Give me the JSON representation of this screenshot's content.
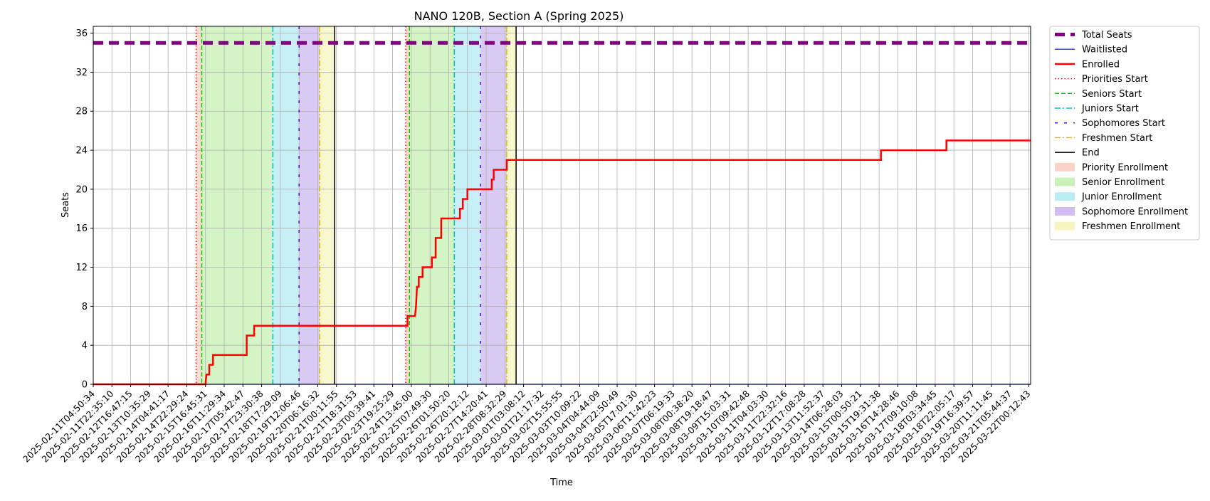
{
  "chart_data": {
    "type": "line",
    "title": "NANO 120B, Section A (Spring 2025)",
    "xlabel": "Time",
    "ylabel": "Seats",
    "ylim": [
      0,
      36.7
    ],
    "yticks": [
      0,
      4,
      8,
      12,
      16,
      20,
      24,
      28,
      32,
      36
    ],
    "grid": true,
    "legend_position": "outside-right",
    "x_tick_labels": [
      "2025-02-11T04:50:34",
      "2025-02-11T22:35:10",
      "2025-02-12T16:47:15",
      "2025-02-13T10:35:29",
      "2025-02-14T04:41:17",
      "2025-02-14T22:29:24",
      "2025-02-15T16:45:31",
      "2025-02-16T11:29:34",
      "2025-02-17T05:42:47",
      "2025-02-17T23:30:38",
      "2025-02-18T17:29:09",
      "2025-02-19T12:06:46",
      "2025-02-20T06:16:32",
      "2025-02-21T00:11:55",
      "2025-02-21T18:31:53",
      "2025-02-23T00:39:41",
      "2025-02-23T19:25:29",
      "2025-02-24T13:45:00",
      "2025-02-25T07:49:30",
      "2025-02-26T01:50:20",
      "2025-02-26T20:12:12",
      "2025-02-27T14:20:41",
      "2025-02-28T08:32:29",
      "2025-03-01T03:08:12",
      "2025-03-01T21:17:32",
      "2025-03-02T15:55:55",
      "2025-03-03T10:09:22",
      "2025-03-04T04:44:09",
      "2025-03-04T22:50:49",
      "2025-03-05T17:01:30",
      "2025-03-06T11:42:23",
      "2025-03-07T06:19:33",
      "2025-03-08T00:38:20",
      "2025-03-08T19:18:47",
      "2025-03-09T15:03:31",
      "2025-03-10T09:42:48",
      "2025-03-11T04:03:30",
      "2025-03-11T22:32:16",
      "2025-03-12T17:08:28",
      "2025-03-13T11:52:37",
      "2025-03-14T06:28:03",
      "2025-03-15T00:50:21",
      "2025-03-15T19:31:38",
      "2025-03-16T14:28:46",
      "2025-03-17T09:10:08",
      "2025-03-18T03:34:45",
      "2025-03-18T22:05:17",
      "2025-03-19T16:39:57",
      "2025-03-20T11:11:45",
      "2025-03-21T05:44:37",
      "2025-03-22T00:12:43"
    ],
    "x_index_range": [
      0,
      50.1
    ],
    "series": [
      {
        "name": "Total Seats",
        "color": "#800080",
        "style": "dashed-thick",
        "points": [
          [
            0,
            35
          ],
          [
            50.1,
            35
          ]
        ]
      },
      {
        "name": "Waitlisted",
        "color": "#0000ff",
        "style": "solid",
        "points": [
          [
            0,
            0
          ],
          [
            50.1,
            0
          ]
        ]
      },
      {
        "name": "Enrolled",
        "color": "#ff0000",
        "style": "solid",
        "points": [
          [
            0,
            0
          ],
          [
            6,
            0
          ],
          [
            6.05,
            1
          ],
          [
            6.2,
            1
          ],
          [
            6.2,
            2
          ],
          [
            6.4,
            2
          ],
          [
            6.4,
            3
          ],
          [
            8.2,
            3
          ],
          [
            8.2,
            5
          ],
          [
            8.6,
            5
          ],
          [
            8.6,
            6
          ],
          [
            16.8,
            6
          ],
          [
            16.8,
            7
          ],
          [
            17.2,
            7
          ],
          [
            17.25,
            8
          ],
          [
            17.3,
            10
          ],
          [
            17.4,
            10
          ],
          [
            17.4,
            11
          ],
          [
            17.6,
            11
          ],
          [
            17.6,
            12
          ],
          [
            18.1,
            12
          ],
          [
            18.1,
            13
          ],
          [
            18.3,
            13
          ],
          [
            18.3,
            15
          ],
          [
            18.6,
            15
          ],
          [
            18.6,
            17
          ],
          [
            19.6,
            17
          ],
          [
            19.6,
            18
          ],
          [
            19.75,
            18
          ],
          [
            19.75,
            19
          ],
          [
            20,
            19
          ],
          [
            20,
            20
          ],
          [
            21.3,
            20
          ],
          [
            21.3,
            21
          ],
          [
            21.4,
            21
          ],
          [
            21.4,
            22
          ],
          [
            22.1,
            22
          ],
          [
            22.1,
            23
          ],
          [
            42.1,
            23
          ],
          [
            42.1,
            24
          ],
          [
            45.6,
            24
          ],
          [
            45.6,
            25
          ],
          [
            50.1,
            25
          ]
        ]
      }
    ],
    "phase_markers": [
      {
        "name": "Priorities Start",
        "color": "#ff0000",
        "style": "dotted",
        "x": [
          5.5,
          16.7
        ]
      },
      {
        "name": "Seniors Start",
        "color": "#00cc00",
        "style": "dashed",
        "x": [
          5.8,
          16.9
        ]
      },
      {
        "name": "Juniors Start",
        "color": "#00bfbf",
        "style": "dashdot",
        "x": [
          9.6,
          19.3
        ]
      },
      {
        "name": "Sophomores Start",
        "color": "#5a00d8",
        "style": "loosedash",
        "x": [
          11,
          20.7
        ]
      },
      {
        "name": "Freshmen Start",
        "color": "#d4c200",
        "style": "dashdot",
        "x": [
          12.1,
          22.1
        ]
      },
      {
        "name": "End",
        "color": "#000000",
        "style": "solid",
        "x": [
          12.9,
          22.6
        ]
      }
    ],
    "enrollment_periods": [
      {
        "name": "Priority Enrollment",
        "color": "#f8c9b8",
        "ranges": [
          [
            5.5,
            5.8
          ],
          [
            16.7,
            16.9
          ]
        ]
      },
      {
        "name": "Senior Enrollment",
        "color": "#bdeea8",
        "ranges": [
          [
            5.8,
            9.6
          ],
          [
            16.9,
            19.3
          ]
        ]
      },
      {
        "name": "Junior Enrollment",
        "color": "#a8e8ef",
        "ranges": [
          [
            9.6,
            11
          ],
          [
            19.3,
            20.7
          ]
        ]
      },
      {
        "name": "Sophomore Enrollment",
        "color": "#c5adee",
        "ranges": [
          [
            11,
            12.1
          ],
          [
            20.7,
            22.1
          ]
        ]
      },
      {
        "name": "Freshmen Enrollment",
        "color": "#f4f2b3",
        "ranges": [
          [
            12.1,
            12.9
          ],
          [
            22.1,
            22.6
          ]
        ]
      }
    ]
  }
}
